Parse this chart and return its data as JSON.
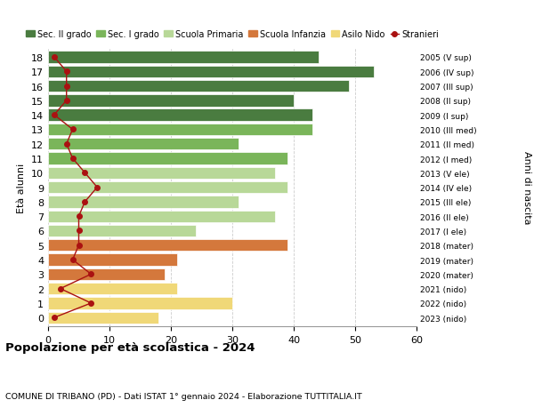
{
  "ages": [
    18,
    17,
    16,
    15,
    14,
    13,
    12,
    11,
    10,
    9,
    8,
    7,
    6,
    5,
    4,
    3,
    2,
    1,
    0
  ],
  "bar_values": [
    44,
    53,
    49,
    40,
    43,
    43,
    31,
    39,
    37,
    39,
    31,
    37,
    24,
    39,
    21,
    19,
    21,
    30,
    18
  ],
  "stranieri_values": [
    1,
    3,
    3,
    3,
    1,
    4,
    3,
    4,
    6,
    8,
    6,
    5,
    5,
    5,
    4,
    7,
    2,
    7,
    1
  ],
  "anni_nascita": [
    "2005 (V sup)",
    "2006 (IV sup)",
    "2007 (III sup)",
    "2008 (II sup)",
    "2009 (I sup)",
    "2010 (III med)",
    "2011 (II med)",
    "2012 (I med)",
    "2013 (V ele)",
    "2014 (IV ele)",
    "2015 (III ele)",
    "2016 (II ele)",
    "2017 (I ele)",
    "2018 (mater)",
    "2019 (mater)",
    "2020 (mater)",
    "2021 (nido)",
    "2022 (nido)",
    "2023 (nido)"
  ],
  "bar_colors": [
    "#4a7c40",
    "#4a7c40",
    "#4a7c40",
    "#4a7c40",
    "#4a7c40",
    "#7ab55a",
    "#7ab55a",
    "#7ab55a",
    "#b8d898",
    "#b8d898",
    "#b8d898",
    "#b8d898",
    "#b8d898",
    "#d4783c",
    "#d4783c",
    "#d4783c",
    "#f0d878",
    "#f0d878",
    "#f0d878"
  ],
  "legend_labels": [
    "Sec. II grado",
    "Sec. I grado",
    "Scuola Primaria",
    "Scuola Infanzia",
    "Asilo Nido",
    "Stranieri"
  ],
  "legend_colors": [
    "#4a7c40",
    "#7ab55a",
    "#b8d898",
    "#d4783c",
    "#f0d878",
    "#aa1111"
  ],
  "title": "Popolazione per età scolastica - 2024",
  "subtitle": "COMUNE DI TRIBANO (PD) - Dati ISTAT 1° gennaio 2024 - Elaborazione TUTTITALIA.IT",
  "ylabel_left": "Età alunni",
  "ylabel_right": "Anni di nascita",
  "xlim": [
    0,
    60
  ],
  "background_color": "#ffffff",
  "stranieri_color": "#aa1111",
  "bar_height": 0.82,
  "grid_color": "#cccccc"
}
